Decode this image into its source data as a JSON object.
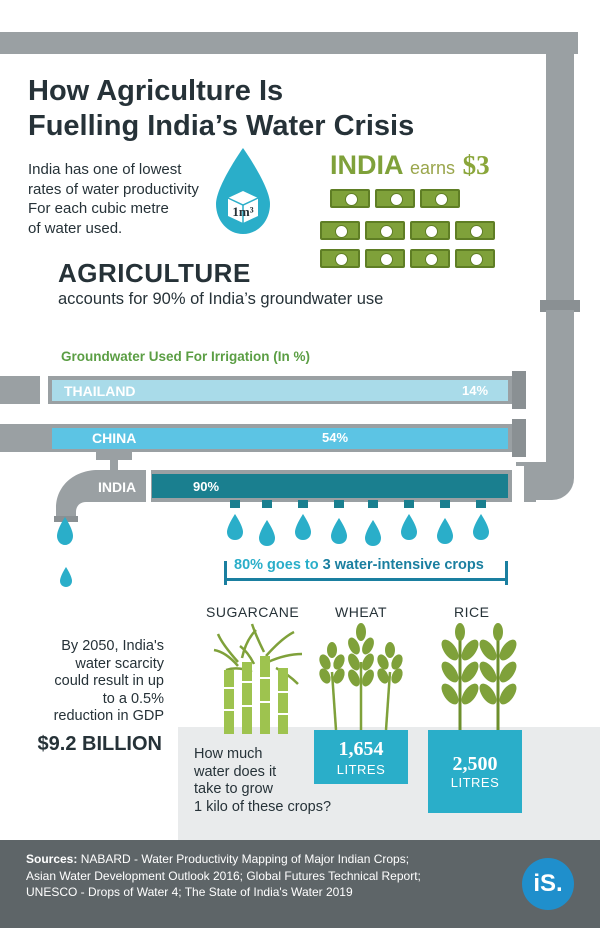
{
  "title_line1": "How Agriculture Is",
  "title_line2": "Fuelling India’s Water Crisis",
  "intro": {
    "line1": "India has one of lowest",
    "line2": "rates of water productivity",
    "line3": "For each cubic metre",
    "line4": "of water used.",
    "drop_label": "1m³"
  },
  "earnings": {
    "country": "INDIA",
    "verb": "earns",
    "amount": "$3"
  },
  "agriculture": {
    "heading": "AGRICULTURE",
    "subtext": "accounts for 90% of India’s groundwater use"
  },
  "chart_data": {
    "type": "bar",
    "title": "Groundwater Used For Irrigation (In %)",
    "categories": [
      "THAILAND",
      "CHINA",
      "INDIA"
    ],
    "values": [
      14,
      54,
      90
    ],
    "value_labels": [
      "14%",
      "54%",
      "90%"
    ],
    "xlim": [
      0,
      100
    ],
    "orientation": "horizontal"
  },
  "crops": {
    "heading_prefix": "80% goes to",
    "heading_emphasis": "3 water-intensive crops",
    "names": [
      "SUGARCANE",
      "WHEAT",
      "RICE"
    ],
    "wheat_amount": "1,654",
    "wheat_unit": "LITRES",
    "rice_amount": "2,500",
    "rice_unit": "LITRES",
    "question_line1": "How much",
    "question_line2": "water does it",
    "question_line3": "take to grow",
    "question_line4": "1 kilo of these crops?"
  },
  "scarcity": {
    "line1": "By 2050,  India's",
    "line2": "water scarcity",
    "line3": "could result in up",
    "line4": "to a 0.5%",
    "line5": "reduction in GDP",
    "amount": "$9.2 BILLION"
  },
  "sources": {
    "label": "Sources:",
    "line1": "NABARD - Water Productivity Mapping of Major Indian Crops;",
    "line2": "Asian Water Development Outlook 2016; Global Futures Technical Report;",
    "line3": "UNESCO - Drops of Water 4; The State of India's Water 2019"
  },
  "logo_text": "iS.",
  "colors": {
    "pipe_gray": "#9aa0a3",
    "thailand_bar": "#a9dbe9",
    "china_bar": "#5cc4e4",
    "india_bar": "#1a7f8f",
    "water_blue": "#2aaec9",
    "green": "#7fa13a",
    "footer": "#5e6568"
  }
}
